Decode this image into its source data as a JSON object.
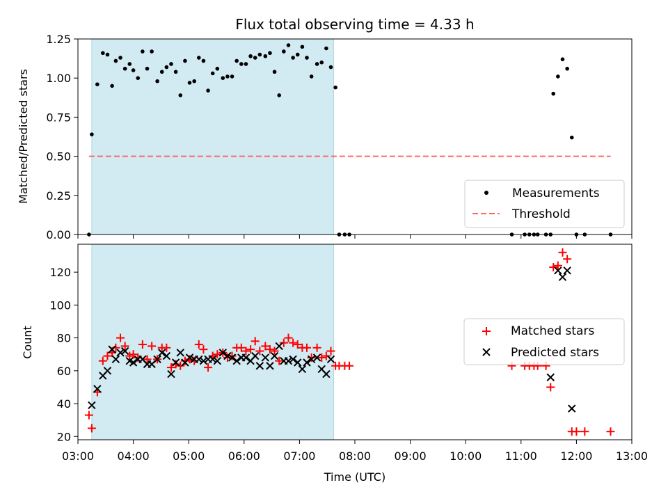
{
  "chart_data": [
    {
      "type": "scatter",
      "title": "Flux total observing time = 4.33 h",
      "ylabel": "Matched/Predicted stars",
      "xlabel": "",
      "xlim": [
        "03:00",
        "13:00"
      ],
      "ylim": [
        0,
        1.25
      ],
      "yticks": [
        "0.00",
        "0.25",
        "0.50",
        "0.75",
        "1.00",
        "1.25"
      ],
      "highlight_span": {
        "from": "03:15",
        "to": "07:37",
        "color": "#add8e6"
      },
      "legend_placement": "lower-right",
      "grid": false,
      "series": [
        {
          "name": "Measurements",
          "marker": "dot",
          "color": "#000000",
          "points": [
            [
              "03:12",
              0
            ],
            [
              "03:15",
              0.64
            ],
            [
              "03:21",
              0.96
            ],
            [
              "03:27",
              1.16
            ],
            [
              "03:32",
              1.15
            ],
            [
              "03:37",
              0.95
            ],
            [
              "03:41",
              1.11
            ],
            [
              "03:46",
              1.13
            ],
            [
              "03:51",
              1.06
            ],
            [
              "03:56",
              1.09
            ],
            [
              "04:00",
              1.05
            ],
            [
              "04:05",
              1.0
            ],
            [
              "04:10",
              1.17
            ],
            [
              "04:15",
              1.06
            ],
            [
              "04:20",
              1.17
            ],
            [
              "04:26",
              0.98
            ],
            [
              "04:31",
              1.04
            ],
            [
              "04:36",
              1.07
            ],
            [
              "04:41",
              1.09
            ],
            [
              "04:46",
              1.04
            ],
            [
              "04:51",
              0.89
            ],
            [
              "04:56",
              1.11
            ],
            [
              "05:01",
              0.97
            ],
            [
              "05:06",
              0.98
            ],
            [
              "05:11",
              1.13
            ],
            [
              "05:16",
              1.11
            ],
            [
              "05:21",
              0.92
            ],
            [
              "05:26",
              1.03
            ],
            [
              "05:31",
              1.06
            ],
            [
              "05:37",
              1.0
            ],
            [
              "05:42",
              1.01
            ],
            [
              "05:47",
              1.01
            ],
            [
              "05:52",
              1.11
            ],
            [
              "05:57",
              1.09
            ],
            [
              "06:02",
              1.09
            ],
            [
              "06:07",
              1.14
            ],
            [
              "06:12",
              1.13
            ],
            [
              "06:17",
              1.15
            ],
            [
              "06:23",
              1.14
            ],
            [
              "06:28",
              1.16
            ],
            [
              "06:33",
              1.04
            ],
            [
              "06:38",
              0.89
            ],
            [
              "06:43",
              1.17
            ],
            [
              "06:48",
              1.21
            ],
            [
              "06:53",
              1.13
            ],
            [
              "06:58",
              1.15
            ],
            [
              "07:03",
              1.2
            ],
            [
              "07:08",
              1.13
            ],
            [
              "07:13",
              1.01
            ],
            [
              "07:19",
              1.09
            ],
            [
              "07:24",
              1.1
            ],
            [
              "07:29",
              1.19
            ],
            [
              "07:34",
              1.07
            ],
            [
              "07:39",
              0.94
            ],
            [
              "07:43",
              0
            ],
            [
              "07:49",
              0
            ],
            [
              "07:54",
              0
            ],
            [
              "10:50",
              0
            ],
            [
              "11:04",
              0
            ],
            [
              "11:09",
              0
            ],
            [
              "11:14",
              0
            ],
            [
              "11:18",
              0
            ],
            [
              "11:27",
              0
            ],
            [
              "11:32",
              0
            ],
            [
              "11:35",
              0.9
            ],
            [
              "11:40",
              1.01
            ],
            [
              "11:45",
              1.12
            ],
            [
              "11:50",
              1.06
            ],
            [
              "11:55",
              0.62
            ],
            [
              "12:00",
              0
            ],
            [
              "12:09",
              0
            ],
            [
              "12:37",
              0
            ]
          ]
        },
        {
          "name": "Threshold",
          "marker": "dashed-line",
          "color": "#ff6666",
          "points": [
            [
              "03:12",
              0.5
            ],
            [
              "12:37",
              0.5
            ]
          ]
        }
      ]
    },
    {
      "type": "scatter",
      "title": "",
      "ylabel": "Count",
      "xlabel": "Time (UTC)",
      "xlim": [
        "03:00",
        "13:00"
      ],
      "ylim": [
        18,
        137
      ],
      "xticks": [
        "03:00",
        "04:00",
        "05:00",
        "06:00",
        "07:00",
        "08:00",
        "09:00",
        "10:00",
        "11:00",
        "12:00",
        "13:00"
      ],
      "yticks": [
        20,
        40,
        60,
        80,
        100,
        120
      ],
      "highlight_span": {
        "from": "03:15",
        "to": "07:37",
        "color": "#add8e6"
      },
      "legend_placement": "center-right",
      "grid": false,
      "series": [
        {
          "name": "Matched stars",
          "marker": "plus",
          "color": "#ff0000",
          "points": [
            [
              "03:12",
              33
            ],
            [
              "03:15",
              25
            ],
            [
              "03:21",
              47
            ],
            [
              "03:27",
              66
            ],
            [
              "03:32",
              69
            ],
            [
              "03:37",
              71
            ],
            [
              "03:41",
              74
            ],
            [
              "03:46",
              80
            ],
            [
              "03:51",
              75
            ],
            [
              "03:56",
              69
            ],
            [
              "04:00",
              70
            ],
            [
              "04:05",
              68
            ],
            [
              "04:10",
              76
            ],
            [
              "04:15",
              67
            ],
            [
              "04:20",
              75
            ],
            [
              "04:26",
              67
            ],
            [
              "04:31",
              74
            ],
            [
              "04:36",
              74
            ],
            [
              "04:41",
              62
            ],
            [
              "04:46",
              64
            ],
            [
              "04:51",
              63
            ],
            [
              "04:56",
              66
            ],
            [
              "05:01",
              67
            ],
            [
              "05:06",
              66
            ],
            [
              "05:11",
              76
            ],
            [
              "05:16",
              73
            ],
            [
              "05:21",
              62
            ],
            [
              "05:26",
              69
            ],
            [
              "05:31",
              70
            ],
            [
              "05:37",
              71
            ],
            [
              "05:42",
              68
            ],
            [
              "05:47",
              69
            ],
            [
              "05:52",
              74
            ],
            [
              "05:57",
              74
            ],
            [
              "06:02",
              72
            ],
            [
              "06:07",
              73
            ],
            [
              "06:12",
              78
            ],
            [
              "06:17",
              72
            ],
            [
              "06:23",
              75
            ],
            [
              "06:28",
              73
            ],
            [
              "06:33",
              72
            ],
            [
              "06:38",
              66
            ],
            [
              "06:43",
              77
            ],
            [
              "06:48",
              80
            ],
            [
              "06:53",
              77
            ],
            [
              "06:58",
              76
            ],
            [
              "07:03",
              74
            ],
            [
              "07:08",
              74
            ],
            [
              "07:13",
              68
            ],
            [
              "07:19",
              74
            ],
            [
              "07:24",
              68
            ],
            [
              "07:29",
              69
            ],
            [
              "07:34",
              72
            ],
            [
              "07:39",
              63
            ],
            [
              "07:43",
              63
            ],
            [
              "07:49",
              63
            ],
            [
              "07:54",
              63
            ],
            [
              "10:50",
              63
            ],
            [
              "11:04",
              63
            ],
            [
              "11:09",
              63
            ],
            [
              "11:14",
              63
            ],
            [
              "11:18",
              63
            ],
            [
              "11:27",
              63
            ],
            [
              "11:32",
              50
            ],
            [
              "11:35",
              123
            ],
            [
              "11:40",
              124
            ],
            [
              "11:45",
              132
            ],
            [
              "11:50",
              128
            ],
            [
              "11:55",
              23
            ],
            [
              "12:00",
              23
            ],
            [
              "12:09",
              23
            ],
            [
              "12:37",
              23
            ]
          ]
        },
        {
          "name": "Predicted stars",
          "marker": "x",
          "color": "#000000",
          "points": [
            [
              "03:15",
              39
            ],
            [
              "03:21",
              49
            ],
            [
              "03:27",
              57
            ],
            [
              "03:32",
              60
            ],
            [
              "03:37",
              73
            ],
            [
              "03:41",
              67
            ],
            [
              "03:46",
              71
            ],
            [
              "03:51",
              72
            ],
            [
              "03:56",
              66
            ],
            [
              "04:00",
              65
            ],
            [
              "04:05",
              67
            ],
            [
              "04:10",
              67
            ],
            [
              "04:15",
              64
            ],
            [
              "04:20",
              64
            ],
            [
              "04:26",
              67
            ],
            [
              "04:31",
              71
            ],
            [
              "04:36",
              69
            ],
            [
              "04:41",
              58
            ],
            [
              "04:46",
              65
            ],
            [
              "04:51",
              71
            ],
            [
              "04:56",
              65
            ],
            [
              "05:01",
              68
            ],
            [
              "05:06",
              67
            ],
            [
              "05:11",
              67
            ],
            [
              "05:16",
              66
            ],
            [
              "05:21",
              67
            ],
            [
              "05:26",
              67
            ],
            [
              "05:31",
              66
            ],
            [
              "05:37",
              71
            ],
            [
              "05:42",
              69
            ],
            [
              "05:47",
              68
            ],
            [
              "05:52",
              66
            ],
            [
              "05:57",
              68
            ],
            [
              "06:02",
              68
            ],
            [
              "06:07",
              66
            ],
            [
              "06:12",
              69
            ],
            [
              "06:17",
              63
            ],
            [
              "06:23",
              68
            ],
            [
              "06:28",
              63
            ],
            [
              "06:33",
              69
            ],
            [
              "06:38",
              75
            ],
            [
              "06:43",
              66
            ],
            [
              "06:48",
              66
            ],
            [
              "06:53",
              67
            ],
            [
              "06:58",
              65
            ],
            [
              "07:03",
              61
            ],
            [
              "07:08",
              65
            ],
            [
              "07:13",
              67
            ],
            [
              "07:19",
              68
            ],
            [
              "07:24",
              61
            ],
            [
              "07:29",
              58
            ],
            [
              "07:34",
              67
            ],
            [
              "11:32",
              56
            ],
            [
              "11:40",
              121
            ],
            [
              "11:45",
              117
            ],
            [
              "11:50",
              121
            ],
            [
              "11:55",
              37
            ]
          ]
        }
      ]
    }
  ]
}
